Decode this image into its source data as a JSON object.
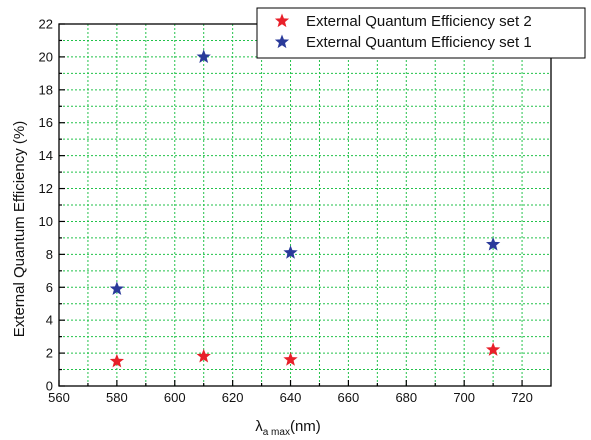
{
  "chart_data": {
    "type": "scatter",
    "xlabel_main": "λ",
    "xlabel_sub": "a max",
    "xlabel_unit": "(nm)",
    "ylabel": "External Quantum Efficiency (%)",
    "xlim": [
      560,
      730
    ],
    "ylim": [
      0,
      22
    ],
    "xticks": [
      560,
      580,
      600,
      620,
      640,
      660,
      680,
      700,
      720
    ],
    "yticks": [
      0,
      2,
      4,
      6,
      8,
      10,
      12,
      14,
      16,
      18,
      20,
      22
    ],
    "grid": true,
    "legend_position": "top-right",
    "series": [
      {
        "name": "External Quantum Efficiency set 2",
        "color": "#e8202a",
        "marker": "star",
        "x": [
          580,
          610,
          640,
          710
        ],
        "y": [
          1.5,
          1.8,
          1.6,
          2.2
        ]
      },
      {
        "name": "External Quantum Efficiency set 1",
        "color": "#2a3a9a",
        "marker": "star",
        "x": [
          580,
          610,
          640,
          710
        ],
        "y": [
          5.9,
          20.0,
          8.1,
          8.6
        ]
      }
    ]
  }
}
